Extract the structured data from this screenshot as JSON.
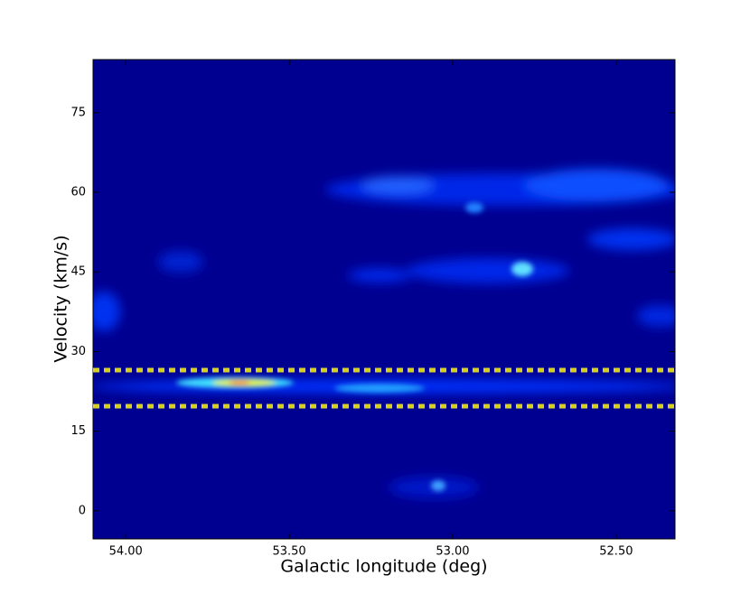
{
  "chart_data": {
    "type": "heatmap",
    "xlabel": "Galactic longitude (deg)",
    "ylabel": "Velocity (km/s)",
    "xlim": [
      54.1,
      52.32
    ],
    "ylim": [
      -5.3,
      85
    ],
    "xticks": [
      {
        "value": 54,
        "label": "54.00"
      },
      {
        "value": 53.5,
        "label": "53.50"
      },
      {
        "value": 53,
        "label": "53.00"
      },
      {
        "value": 52.5,
        "label": "52.50"
      }
    ],
    "yticks": [
      0,
      15,
      30,
      45,
      60,
      75
    ],
    "hlines": [
      26.5,
      19.7
    ],
    "hline_color": "#d8d020",
    "background": "#000090"
  }
}
